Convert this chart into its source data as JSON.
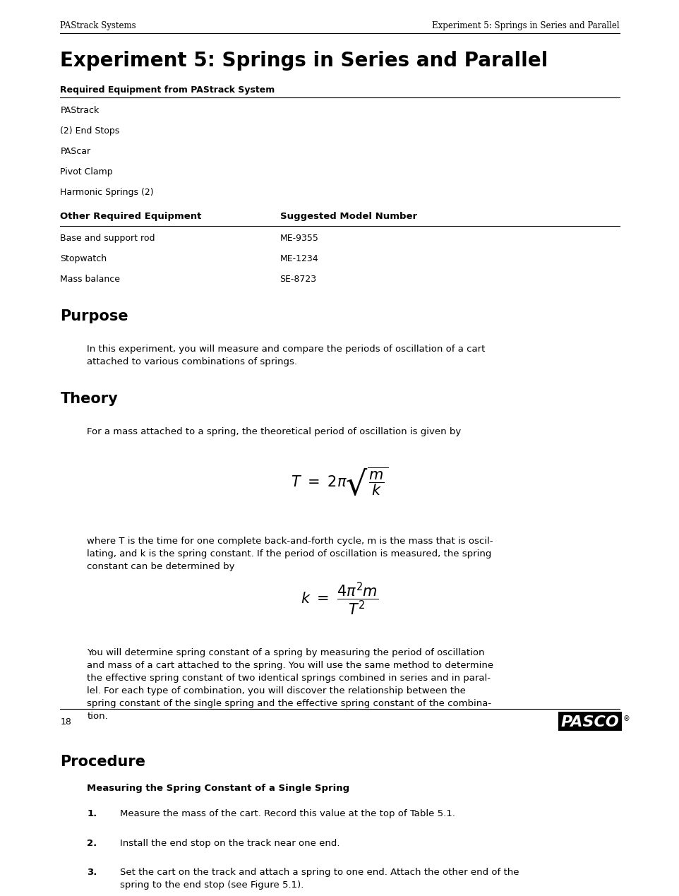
{
  "page_width": 9.54,
  "page_height": 12.35,
  "bg_color": "#ffffff",
  "header_left": "PAStrack Systems",
  "header_right": "Experiment 5: Springs in Series and Parallel",
  "main_title": "Experiment 5: Springs in Series and Parallel",
  "section_purpose": "Purpose",
  "section_theory": "Theory",
  "section_procedure": "Procedure",
  "req_equipment_header": "Required Equipment from PAStrack System",
  "pastrack_items": [
    "PAStrack",
    "(2) End Stops",
    "PAScar",
    "Pivot Clamp",
    "Harmonic Springs (2)"
  ],
  "other_col1": "Other Required Equipment",
  "other_col2": "Suggested Model Number",
  "other_items": [
    [
      "Base and support rod",
      "ME-9355"
    ],
    [
      "Stopwatch",
      "ME-1234"
    ],
    [
      "Mass balance",
      "SE-8723"
    ]
  ],
  "purpose_text": "In this experiment, you will measure and compare the periods of oscillation of a cart\nattached to various combinations of springs.",
  "theory_intro": "For a mass attached to a spring, the theoretical period of oscillation is given by",
  "theory_after": "where T is the time for one complete back-and-forth cycle, m is the mass that is oscil-\nlating, and k is the spring constant. If the period of oscillation is measured, the spring\nconstant can be determined by",
  "theory_final": "You will determine spring constant of a spring by measuring the period of oscillation\nand mass of a cart attached to the spring. You will use the same method to determine\nthe effective spring constant of two identical springs combined in series and in paral-\nlel. For each type of combination, you will discover the relationship between the\nspring constant of the single spring and the effective spring constant of the combina-\ntion.",
  "proc_subheader": "Measuring the Spring Constant of a Single Spring",
  "proc_items": [
    "Measure the mass of the cart. Record this value at the top of Table 5.1.",
    "Install the end stop on the track near one end.",
    "Set the cart on the track and attach a spring to one end. Attach the other end of the\nspring to the end stop (see Figure 5.1)."
  ],
  "footer_page": "18",
  "footer_logo": "PASCO"
}
